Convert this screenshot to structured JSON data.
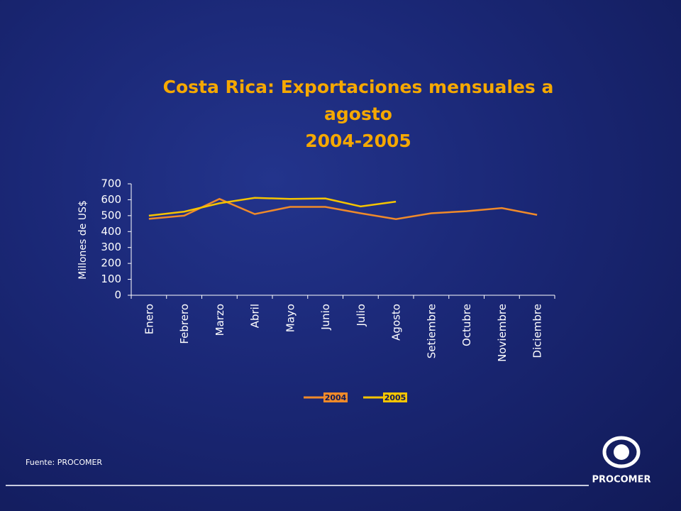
{
  "chart_data": {
    "type": "line",
    "title": "Costa Rica: Exportaciones mensuales a agosto",
    "subtitle": "2004-2005",
    "y_label": "Millones de US$",
    "categories": [
      "Enero",
      "Febrero",
      "Marzo",
      "Abril",
      "Mayo",
      "Junio",
      "Julio",
      "Agosto",
      "Setiembre",
      "Octubre",
      "Noviembre",
      "Diciembre"
    ],
    "series": [
      {
        "name": "2004",
        "color": "#f08a2a",
        "values": [
          480,
          500,
          605,
          510,
          555,
          555,
          515,
          478,
          515,
          528,
          548,
          505
        ]
      },
      {
        "name": "2005",
        "color": "#f5c400",
        "values": [
          500,
          525,
          578,
          612,
          605,
          608,
          558,
          588,
          null,
          null,
          null,
          null
        ]
      }
    ],
    "ylim": [
      0,
      700
    ],
    "yticks": [
      0,
      100,
      200,
      300,
      400,
      500,
      600,
      700
    ],
    "legend": "bottom",
    "source": "Fuente: PROCOMER",
    "logo_text": "PROCOMER"
  }
}
